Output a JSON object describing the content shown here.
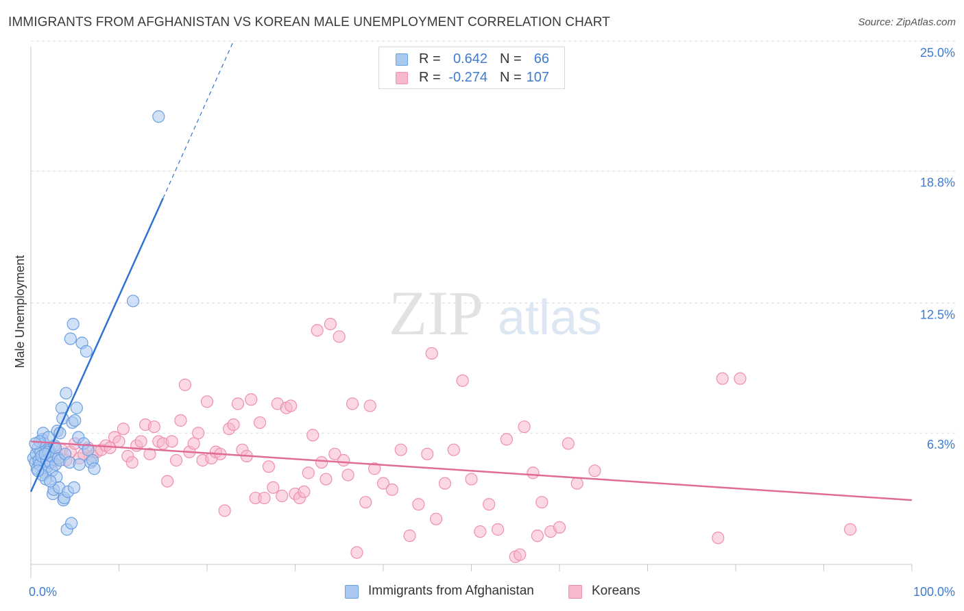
{
  "title": "IMMIGRANTS FROM AFGHANISTAN VS KOREAN MALE UNEMPLOYMENT CORRELATION CHART",
  "source": "Source: ZipAtlas.com",
  "watermark": {
    "part1": "ZIP",
    "part2": "atlas"
  },
  "legend_top": [
    {
      "r_label": "R =",
      "r_value": "0.642",
      "n_label": "N =",
      "n_value": "66"
    },
    {
      "r_label": "R =",
      "r_value": "-0.274",
      "n_label": "N =",
      "n_value": "107"
    }
  ],
  "legend_bottom": [
    {
      "label": "Immigrants from Afghanistan"
    },
    {
      "label": "Koreans"
    }
  ],
  "colors": {
    "series1_fill": "#a9c8f0",
    "series1_stroke": "#6a9fe0",
    "series1_line": "#2f73d2",
    "series2_fill": "#f8b8cc",
    "series2_stroke": "#ee8fad",
    "series2_line": "#e06b97",
    "axis_text": "#3d7bd1",
    "grid": "#dcdcdc"
  },
  "chart_data": {
    "type": "scatter",
    "title": "IMMIGRANTS FROM AFGHANISTAN VS KOREAN MALE UNEMPLOYMENT CORRELATION CHART",
    "xlabel": "",
    "ylabel": "Male Unemployment",
    "xlim": [
      0,
      100
    ],
    "ylim": [
      0,
      26
    ],
    "x_tick_labels": [
      "0.0%",
      "100.0%"
    ],
    "y_ticks": [
      6.3,
      12.5,
      18.8,
      25.0
    ],
    "y_tick_labels": [
      "6.3%",
      "12.5%",
      "18.8%",
      "25.0%"
    ],
    "grid": true,
    "series": [
      {
        "name": "Immigrants from Afghanistan",
        "r": 0.642,
        "n": 66,
        "trend": {
          "x0": 0.0,
          "y0": 3.5,
          "x1": 15.0,
          "y1": 17.5,
          "dash_to_x": 23.0,
          "dash_to_y": 25.0
        },
        "points": [
          [
            0.3,
            5.1
          ],
          [
            0.5,
            4.9
          ],
          [
            0.6,
            5.3
          ],
          [
            0.7,
            4.6
          ],
          [
            0.8,
            5.6
          ],
          [
            0.9,
            5.0
          ],
          [
            1.0,
            4.8
          ],
          [
            1.1,
            5.4
          ],
          [
            1.2,
            5.2
          ],
          [
            1.3,
            6.0
          ],
          [
            1.4,
            6.3
          ],
          [
            1.5,
            5.8
          ],
          [
            1.6,
            4.4
          ],
          [
            1.7,
            4.1
          ],
          [
            1.8,
            5.0
          ],
          [
            1.9,
            4.7
          ],
          [
            2.0,
            6.1
          ],
          [
            2.1,
            5.5
          ],
          [
            2.2,
            4.9
          ],
          [
            2.3,
            5.2
          ],
          [
            2.4,
            4.5
          ],
          [
            2.5,
            3.4
          ],
          [
            2.6,
            3.6
          ],
          [
            2.7,
            5.7
          ],
          [
            2.8,
            4.8
          ],
          [
            2.9,
            4.2
          ],
          [
            3.0,
            6.4
          ],
          [
            3.1,
            5.1
          ],
          [
            3.2,
            3.7
          ],
          [
            3.3,
            5.0
          ],
          [
            3.5,
            7.5
          ],
          [
            3.6,
            7.0
          ],
          [
            3.7,
            3.1
          ],
          [
            3.8,
            3.2
          ],
          [
            3.9,
            5.3
          ],
          [
            4.0,
            8.2
          ],
          [
            4.1,
            1.7
          ],
          [
            4.2,
            3.5
          ],
          [
            4.4,
            4.9
          ],
          [
            4.5,
            10.8
          ],
          [
            4.6,
            2.0
          ],
          [
            4.7,
            6.8
          ],
          [
            4.8,
            11.5
          ],
          [
            4.9,
            3.7
          ],
          [
            5.0,
            6.9
          ],
          [
            5.2,
            7.5
          ],
          [
            5.4,
            6.1
          ],
          [
            5.5,
            4.8
          ],
          [
            5.8,
            10.6
          ],
          [
            6.0,
            5.8
          ],
          [
            6.3,
            10.2
          ],
          [
            6.5,
            5.5
          ],
          [
            6.8,
            4.9
          ],
          [
            7.0,
            5.0
          ],
          [
            7.2,
            4.6
          ],
          [
            1.0,
            5.9
          ],
          [
            1.3,
            4.3
          ],
          [
            2.0,
            5.4
          ],
          [
            2.8,
            5.6
          ],
          [
            3.3,
            6.3
          ],
          [
            0.8,
            4.5
          ],
          [
            1.6,
            5.3
          ],
          [
            2.2,
            4.0
          ],
          [
            11.6,
            12.6
          ],
          [
            14.5,
            21.4
          ],
          [
            0.5,
            5.8
          ]
        ]
      },
      {
        "name": "Koreans",
        "r": -0.274,
        "n": 107,
        "trend": {
          "x0": 0.0,
          "y0": 5.9,
          "x1": 100.0,
          "y1": 3.1
        },
        "points": [
          [
            1.0,
            5.0
          ],
          [
            1.5,
            5.3
          ],
          [
            2.0,
            5.6
          ],
          [
            2.5,
            4.9
          ],
          [
            3.0,
            5.2
          ],
          [
            3.5,
            5.5
          ],
          [
            4.0,
            5.0
          ],
          [
            4.5,
            5.4
          ],
          [
            5.0,
            5.8
          ],
          [
            5.5,
            5.1
          ],
          [
            6.0,
            5.3
          ],
          [
            6.5,
            5.6
          ],
          [
            7.0,
            5.2
          ],
          [
            7.5,
            5.4
          ],
          [
            8.0,
            5.5
          ],
          [
            8.5,
            5.7
          ],
          [
            9.0,
            5.6
          ],
          [
            9.5,
            6.1
          ],
          [
            10.0,
            5.9
          ],
          [
            10.5,
            6.5
          ],
          [
            11.0,
            5.2
          ],
          [
            11.5,
            4.9
          ],
          [
            12.0,
            5.7
          ],
          [
            12.5,
            5.9
          ],
          [
            13.0,
            6.7
          ],
          [
            13.5,
            5.3
          ],
          [
            14.0,
            6.6
          ],
          [
            14.5,
            5.9
          ],
          [
            15.0,
            5.8
          ],
          [
            15.5,
            4.0
          ],
          [
            16.0,
            5.9
          ],
          [
            16.5,
            5.0
          ],
          [
            17.0,
            6.9
          ],
          [
            17.5,
            8.6
          ],
          [
            18.0,
            5.4
          ],
          [
            18.5,
            5.8
          ],
          [
            19.0,
            6.3
          ],
          [
            19.5,
            5.0
          ],
          [
            20.0,
            7.8
          ],
          [
            20.5,
            5.1
          ],
          [
            21.0,
            5.4
          ],
          [
            21.5,
            5.3
          ],
          [
            22.0,
            2.6
          ],
          [
            22.5,
            6.5
          ],
          [
            23.0,
            6.7
          ],
          [
            23.5,
            7.7
          ],
          [
            24.0,
            5.5
          ],
          [
            24.5,
            5.2
          ],
          [
            25.0,
            7.9
          ],
          [
            25.5,
            3.2
          ],
          [
            26.0,
            6.8
          ],
          [
            26.5,
            3.2
          ],
          [
            27.0,
            4.7
          ],
          [
            27.5,
            3.7
          ],
          [
            28.0,
            7.7
          ],
          [
            28.5,
            3.3
          ],
          [
            29.0,
            7.5
          ],
          [
            29.5,
            7.6
          ],
          [
            30.0,
            3.4
          ],
          [
            30.5,
            3.2
          ],
          [
            31.0,
            3.5
          ],
          [
            31.5,
            4.4
          ],
          [
            32.0,
            6.2
          ],
          [
            32.5,
            11.2
          ],
          [
            33.0,
            4.9
          ],
          [
            33.5,
            4.1
          ],
          [
            34.0,
            11.5
          ],
          [
            34.5,
            5.3
          ],
          [
            35.0,
            10.9
          ],
          [
            35.5,
            5.0
          ],
          [
            36.0,
            4.3
          ],
          [
            36.5,
            7.7
          ],
          [
            37.0,
            0.6
          ],
          [
            38.0,
            3.0
          ],
          [
            38.5,
            7.6
          ],
          [
            39.0,
            4.6
          ],
          [
            40.0,
            3.9
          ],
          [
            41.0,
            3.6
          ],
          [
            42.0,
            5.5
          ],
          [
            43.0,
            1.4
          ],
          [
            44.0,
            2.9
          ],
          [
            45.0,
            5.3
          ],
          [
            45.5,
            10.1
          ],
          [
            46.0,
            2.2
          ],
          [
            47.0,
            3.9
          ],
          [
            48.0,
            5.5
          ],
          [
            49.0,
            8.8
          ],
          [
            50.0,
            4.1
          ],
          [
            51.0,
            1.6
          ],
          [
            52.0,
            2.9
          ],
          [
            53.0,
            1.7
          ],
          [
            54.0,
            6.0
          ],
          [
            55.0,
            0.4
          ],
          [
            55.5,
            0.5
          ],
          [
            56.0,
            6.6
          ],
          [
            57.0,
            4.4
          ],
          [
            57.5,
            1.4
          ],
          [
            58.0,
            3.0
          ],
          [
            59.0,
            1.6
          ],
          [
            60.0,
            1.8
          ],
          [
            61.0,
            5.8
          ],
          [
            62.0,
            3.9
          ],
          [
            64.0,
            4.5
          ],
          [
            78.0,
            1.3
          ],
          [
            78.5,
            8.9
          ],
          [
            80.5,
            8.9
          ],
          [
            93.0,
            1.7
          ]
        ]
      }
    ]
  }
}
